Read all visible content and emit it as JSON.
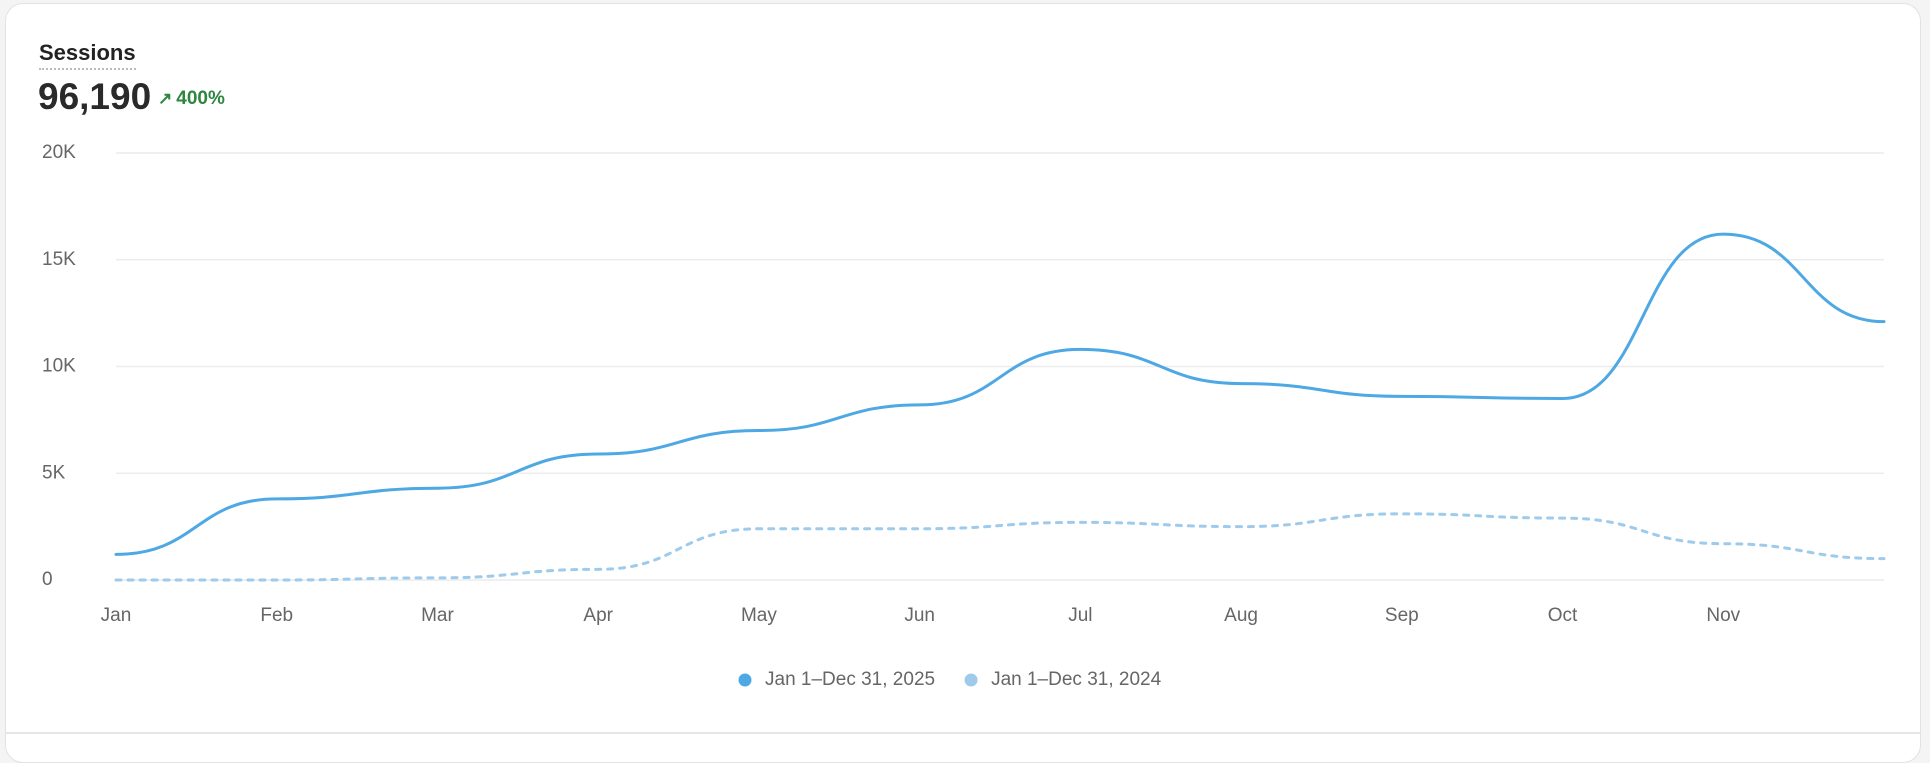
{
  "header": {
    "title": "Sessions",
    "total": "96,190",
    "change": "400%"
  },
  "chart_data": {
    "type": "line",
    "categories": [
      "Jan",
      "Feb",
      "Mar",
      "Apr",
      "May",
      "Jun",
      "Jul",
      "Aug",
      "Sep",
      "Oct",
      "Nov",
      null
    ],
    "series": [
      {
        "name": "Jan 1–Dec 31, 2025",
        "color": "#4ea8e4",
        "dashed": false,
        "values": [
          1200,
          3800,
          4300,
          5900,
          7000,
          8200,
          10800,
          9200,
          8600,
          8500,
          16200,
          12100
        ]
      },
      {
        "name": "Jan 1–Dec 31, 2024",
        "color": "#9ecbec",
        "dashed": true,
        "values": [
          0,
          0,
          100,
          500,
          2400,
          2400,
          2700,
          2500,
          3100,
          2900,
          1700,
          1000
        ]
      }
    ],
    "ylim": [
      0,
      20000
    ],
    "yticks": [
      0,
      {
        "value": 5000,
        "label": "5K"
      },
      {
        "value": 10000,
        "label": "10K"
      },
      {
        "value": 15000,
        "label": "15K"
      },
      {
        "value": 20000,
        "label": "20K"
      }
    ],
    "grid": true,
    "legend": "bottom"
  }
}
